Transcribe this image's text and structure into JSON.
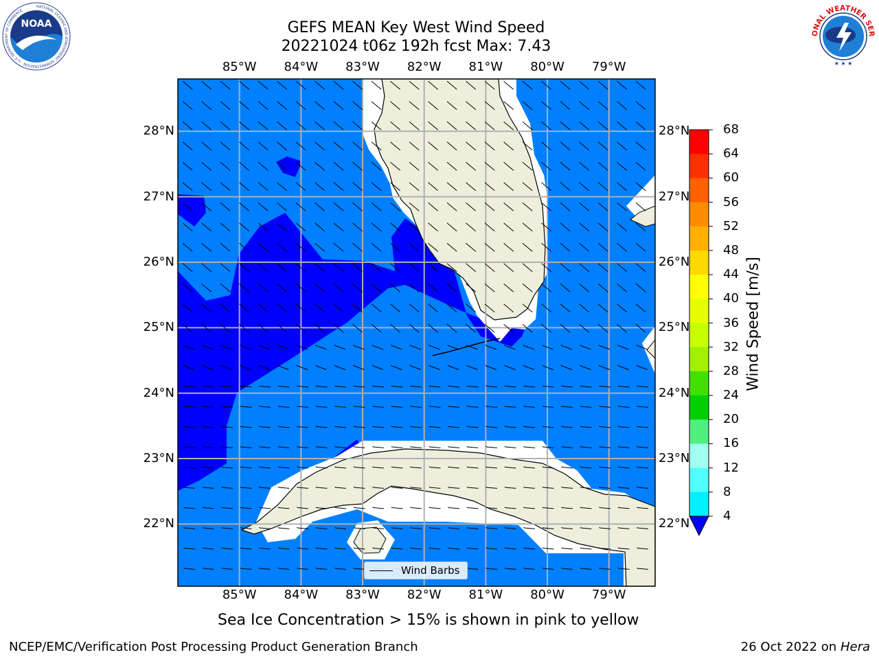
{
  "title": {
    "line1": "GEFS MEAN Key West Wind Speed",
    "line2": "20221024 t06z 192h fcst   Max: 7.43"
  },
  "logos": {
    "left": "noaa-logo",
    "right": "nws-logo",
    "left_text": "NOAA",
    "left_ring": "NATIONAL OCEANIC AND ATMOSPHERIC ADMINISTRATION · U.S. DEPARTMENT OF COMMERCE",
    "right_ring": "NATIONAL WEATHER SERVICE"
  },
  "map": {
    "lon_labels": [
      "85°W",
      "84°W",
      "83°W",
      "82°W",
      "81°W",
      "80°W",
      "79°W"
    ],
    "lat_labels": [
      "28°N",
      "27°N",
      "26°N",
      "25°N",
      "24°N",
      "23°N",
      "22°N"
    ],
    "lon_range": [
      -86.0,
      -78.25
    ],
    "lat_range": [
      21.05,
      28.8
    ],
    "grid": true,
    "legend_label": "Wind Barbs",
    "colors": {
      "ocean_main": "#0080ff",
      "ocean_low": "#0000ff",
      "land": "#eeeedd",
      "grid": "#b0b0b0"
    }
  },
  "colorbar": {
    "label": "Wind Speed [m/s]",
    "ticks": [
      "68",
      "64",
      "60",
      "56",
      "52",
      "48",
      "44",
      "40",
      "36",
      "32",
      "28",
      "24",
      "20",
      "16",
      "12",
      "8",
      "4"
    ],
    "colors": [
      "#ff0000",
      "#ff3000",
      "#ff6000",
      "#ff8c00",
      "#ffb000",
      "#ffd800",
      "#ffff00",
      "#e6ff00",
      "#c8ff00",
      "#a0f000",
      "#40e000",
      "#00d000",
      "#50f080",
      "#a0fff0",
      "#50ffff",
      "#00f0ff",
      "#00b0ff",
      "#0080ff"
    ],
    "extend_color": "#0000ff"
  },
  "caption": "Sea Ice Concentration > 15% is shown in pink to yellow",
  "footer": {
    "left": "NCEP/EMC/Verification Post Processing Product Generation Branch",
    "right_date": "26 Oct 2022 on ",
    "right_host": "Hera"
  }
}
